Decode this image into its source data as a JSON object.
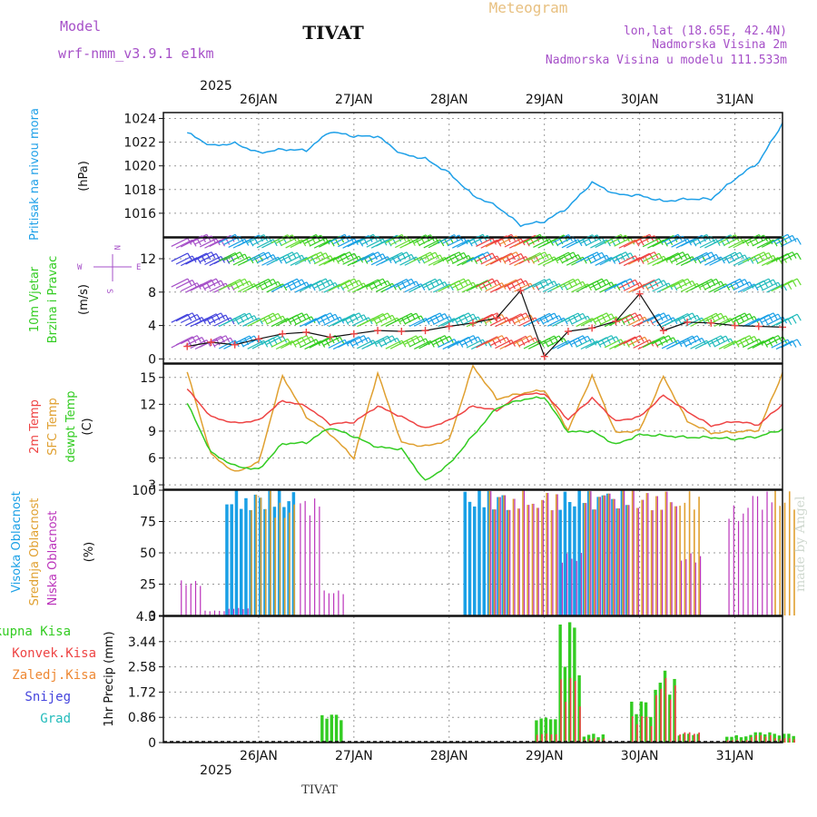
{
  "header": {
    "model_label": "Model",
    "model_name": "wrf-nmm_v3.9.1  e1km",
    "title": "TIVAT",
    "meteogram_label": "Meteogram",
    "location": "lon,lat (18.65E, 42.4N)",
    "elevation": "Nadmorska Visina 2m",
    "model_elevation": "Nadmorska Visina u modelu 111.533m"
  },
  "footer": {
    "station": "TIVAT",
    "credit": "made by Angel"
  },
  "colors": {
    "pressure": "#1fa0e8",
    "temp2m": "#ee4444",
    "sfc_temp": "#e0a030",
    "dewpoint": "#33cc22",
    "high_cloud": "#1aa0e6",
    "mid_cloud": "#e0a030",
    "low_cloud": "#bb33bb",
    "total_precip": "#33cc22",
    "conv_precip": "#ee4444",
    "frozen_precip": "#ee8833",
    "snow": "#4444dd",
    "hail": "#22bbbb"
  },
  "chart_data": [
    {
      "type": "line",
      "id": "pressure",
      "ylabel": "Pritisak na nivou mora",
      "unit": "(hPa)",
      "year_label": "2025",
      "x_ticks": [
        "26JAN",
        "27JAN",
        "28JAN",
        "29JAN",
        "30JAN",
        "31JAN"
      ],
      "y_ticks": [
        1016,
        1018,
        1020,
        1022,
        1024
      ],
      "ylim": [
        1014,
        1024.5
      ],
      "x_hours": [
        0,
        6,
        12,
        18,
        24,
        30,
        36,
        42,
        48,
        54,
        60,
        66,
        72,
        78,
        84,
        90,
        96,
        102,
        108,
        114,
        120,
        126,
        132,
        138,
        144,
        150
      ],
      "series": [
        {
          "values": [
            1022.8,
            1021.7,
            1021.9,
            1021.1,
            1021.4,
            1021.3,
            1022.9,
            1022.5,
            1022.5,
            1021.0,
            1020.6,
            1019.4,
            1017.5,
            1016.6,
            1015.0,
            1015.3,
            1016.5,
            1018.6,
            1017.6,
            1017.5,
            1017.0,
            1017.2,
            1017.2,
            1018.9,
            1020.3,
            1023.6
          ]
        }
      ],
      "grid": true
    },
    {
      "type": "scatter",
      "id": "wind",
      "ylabel": "10m Vjetar Brzina i Pravac",
      "unit": "(m/s)",
      "direction_key": [
        "N",
        "W",
        "E",
        "S"
      ],
      "y_ticks": [
        0,
        4,
        8,
        12
      ],
      "ylim": [
        -0.5,
        14.5
      ],
      "x_hours": [
        0,
        6,
        12,
        18,
        24,
        30,
        36,
        42,
        48,
        54,
        60,
        66,
        72,
        78,
        84,
        90,
        96,
        102,
        108,
        114,
        120,
        126,
        132,
        138,
        144,
        150
      ],
      "series": [
        {
          "values": [
            1.5,
            2.0,
            1.7,
            2.4,
            3.0,
            3.2,
            2.6,
            3.0,
            3.4,
            3.3,
            3.4,
            3.9,
            4.3,
            4.9,
            8.2,
            0.3,
            3.3,
            3.7,
            4.5,
            7.8,
            3.4,
            4.4,
            4.3,
            4.0,
            3.9,
            3.8
          ]
        }
      ],
      "grid": true
    },
    {
      "type": "line",
      "id": "temperature",
      "ylabel": "2m Temp / SFC Temp / dewpt Temp",
      "unit": "(C)",
      "y_ticks": [
        3,
        6,
        9,
        12,
        15
      ],
      "ylim": [
        2.5,
        16.5
      ],
      "x_hours": [
        0,
        6,
        12,
        18,
        24,
        30,
        36,
        42,
        48,
        54,
        60,
        66,
        72,
        78,
        84,
        90,
        96,
        102,
        108,
        114,
        120,
        126,
        132,
        138,
        144,
        150
      ],
      "series": [
        {
          "name": "2m Temp",
          "values": [
            13.7,
            10.6,
            9.9,
            10.2,
            12.4,
            11.8,
            9.8,
            10.0,
            11.8,
            10.6,
            9.3,
            10.2,
            11.8,
            11.3,
            13.1,
            13.2,
            10.3,
            12.7,
            10.1,
            10.6,
            13.0,
            11.2,
            9.6,
            10.1,
            9.7,
            12.0
          ]
        },
        {
          "name": "SFC Temp",
          "values": [
            15.6,
            6.4,
            4.4,
            5.5,
            15.2,
            10.6,
            8.7,
            6.0,
            15.5,
            7.7,
            7.3,
            8.0,
            16.3,
            12.6,
            13.2,
            13.6,
            9.1,
            15.2,
            8.8,
            9.1,
            15.1,
            10.1,
            8.8,
            8.9,
            9.1,
            15.5
          ]
        },
        {
          "name": "dewpt Temp",
          "values": [
            12.1,
            6.6,
            5.1,
            4.7,
            7.6,
            7.7,
            9.4,
            8.4,
            7.2,
            7.0,
            3.4,
            5.3,
            8.5,
            11.6,
            12.5,
            12.8,
            8.9,
            9.0,
            7.5,
            8.6,
            8.5,
            8.3,
            8.3,
            8.1,
            8.4,
            9.2
          ]
        }
      ],
      "grid": true
    },
    {
      "type": "bar",
      "id": "clouds",
      "ylabel": "Visoka Oblacnost / Srednja Oblacnost / Niska Oblacnost",
      "unit": "(%)",
      "y_ticks": [
        0,
        25,
        50,
        75,
        100
      ],
      "ylim": [
        0,
        100
      ],
      "x_hours": [
        0,
        6,
        12,
        18,
        24,
        30,
        36,
        42,
        48,
        54,
        60,
        66,
        72,
        78,
        84,
        90,
        96,
        102,
        108,
        114,
        120,
        126,
        132,
        138,
        144,
        150
      ],
      "series": [
        {
          "name": "Visoka Oblacnost",
          "values": [
            0,
            0,
            100,
            100,
            100,
            0,
            0,
            0,
            0,
            0,
            0,
            0,
            100,
            100,
            0,
            0,
            100,
            100,
            100,
            0,
            0,
            0,
            0,
            0,
            0,
            0
          ]
        },
        {
          "name": "Srednja Oblacnost",
          "values": [
            0,
            0,
            0,
            100,
            90,
            0,
            0,
            0,
            0,
            0,
            0,
            0,
            0,
            100,
            100,
            100,
            0,
            100,
            100,
            100,
            100,
            100,
            0,
            0,
            0,
            100
          ]
        },
        {
          "name": "Niska Oblacnost",
          "values": [
            28,
            4,
            6,
            0,
            0,
            95,
            20,
            0,
            0,
            0,
            0,
            0,
            0,
            100,
            100,
            100,
            50,
            100,
            100,
            100,
            100,
            50,
            0,
            88,
            100,
            0
          ]
        }
      ],
      "grid": true
    },
    {
      "type": "bar",
      "id": "precipitation",
      "ylabel": "1hr Precip",
      "unit": "(mm)",
      "legend": [
        "Ukupna  Kisa",
        "Konvek.Kisa",
        "Zaledj.Kisa",
        "Snijeg",
        "Grad"
      ],
      "year_label": "2025",
      "x_ticks": [
        "26JAN",
        "27JAN",
        "28JAN",
        "29JAN",
        "30JAN",
        "31JAN"
      ],
      "y_ticks": [
        "0",
        "0.86",
        "1.72",
        "2.58",
        "3.44",
        "4.3"
      ],
      "ylim": [
        0,
        4.3
      ],
      "x_hours": [
        0,
        6,
        12,
        18,
        24,
        30,
        36,
        42,
        48,
        54,
        60,
        66,
        72,
        78,
        84,
        90,
        96,
        102,
        108,
        114,
        120,
        126,
        132,
        138,
        144,
        150
      ],
      "series": [
        {
          "name": "Ukupna  Kisa",
          "values": [
            0,
            0,
            0,
            0,
            0,
            0,
            0.95,
            0,
            0,
            0,
            0,
            0,
            0,
            0,
            0,
            0.85,
            4.1,
            0.3,
            0,
            1.4,
            2.45,
            0.3,
            0,
            0.25,
            0.35,
            0.3
          ]
        },
        {
          "name": "Konvek.Kisa",
          "values": [
            0,
            0,
            0,
            0,
            0,
            0,
            0,
            0,
            0,
            0,
            0,
            0,
            0,
            0,
            0,
            0.3,
            2.2,
            0.15,
            0,
            0.9,
            2.2,
            0.35,
            0,
            0.1,
            0.25,
            0.15
          ]
        }
      ],
      "grid": true
    }
  ]
}
